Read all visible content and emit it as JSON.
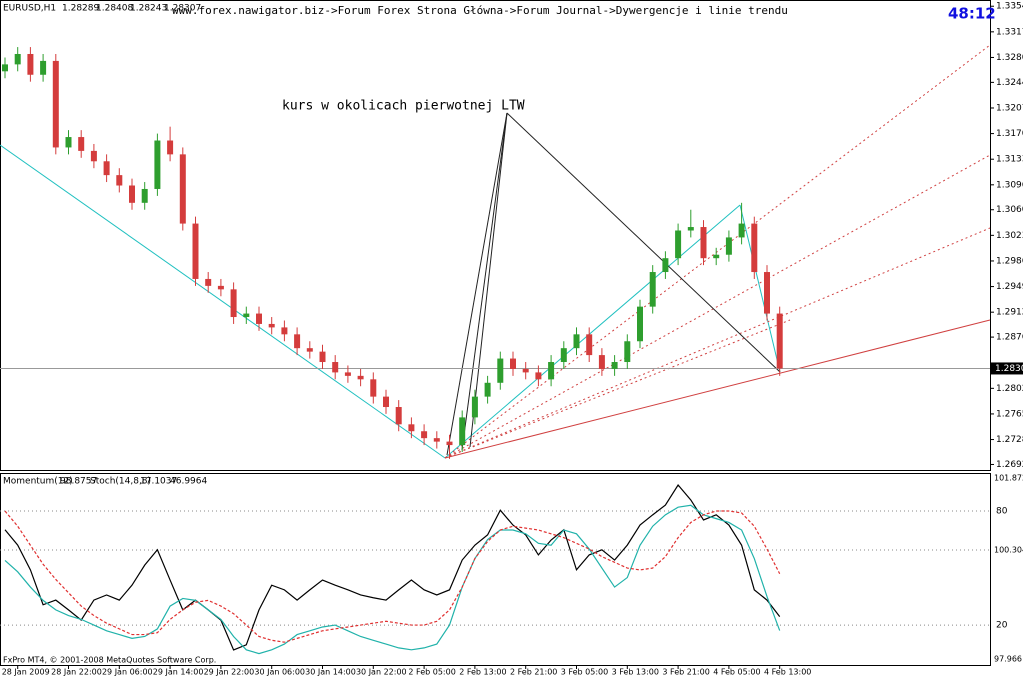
{
  "chart_data": [
    {
      "type": "candlestick",
      "symbol": "EURUSD,H1",
      "ohlc_header": [
        1.28289,
        1.28408,
        1.28243,
        1.28307
      ],
      "breadcrumb": "www.forex.nawigator.biz->Forum Forex Strona Główna->Forum Journal->Dywergencje i linie trendu",
      "timer": "48:12",
      "annotation": "kurs w okolicach pierwotnej LTW",
      "current_price": 1.28307,
      "up_color": "#2e9e2e",
      "down_color": "#d43c3c",
      "categories": [
        null,
        "28 Jan 2009",
        null,
        null,
        null,
        "28 Jan 22:00",
        null,
        null,
        null,
        "29 Jan 06:00",
        null,
        null,
        null,
        "29 Jan 14:00",
        null,
        null,
        null,
        "29 Jan 22:00",
        null,
        null,
        null,
        "30 Jan 06:00",
        null,
        null,
        null,
        "30 Jan 14:00",
        null,
        null,
        null,
        "30 Jan 22:00",
        null,
        null,
        null,
        "2 Feb 05:00",
        null,
        null,
        null,
        "2 Feb 13:00",
        null,
        null,
        null,
        "2 Feb 21:00",
        null,
        null,
        null,
        "3 Feb 05:00",
        null,
        null,
        null,
        "3 Feb 13:00",
        null,
        null,
        null,
        "3 Feb 21:00",
        null,
        null,
        null,
        "4 Feb 05:00",
        null,
        null,
        null,
        "4 Feb 13:00"
      ],
      "open": [
        1.326,
        1.327,
        1.3285,
        1.3255,
        1.3275,
        1.315,
        1.3165,
        1.3145,
        1.313,
        1.311,
        1.3095,
        1.307,
        1.309,
        1.316,
        1.314,
        1.304,
        1.296,
        1.295,
        1.2945,
        1.2905,
        1.291,
        1.2895,
        1.289,
        1.288,
        1.286,
        1.2855,
        1.284,
        1.2825,
        1.282,
        1.2815,
        1.279,
        1.2775,
        1.275,
        1.274,
        1.273,
        1.2725,
        1.272,
        1.276,
        1.279,
        1.281,
        1.2845,
        1.283,
        1.2825,
        1.2815,
        1.284,
        1.286,
        1.288,
        1.285,
        1.283,
        1.284,
        1.287,
        1.292,
        1.297,
        1.299,
        1.303,
        1.3035,
        1.299,
        1.2995,
        1.302,
        1.304,
        1.297,
        1.291
      ],
      "high": [
        1.328,
        1.3295,
        1.3295,
        1.3285,
        1.3285,
        1.3175,
        1.3175,
        1.3155,
        1.314,
        1.312,
        1.3105,
        1.31,
        1.317,
        1.318,
        1.315,
        1.305,
        1.297,
        1.296,
        1.2955,
        1.292,
        1.292,
        1.2905,
        1.29,
        1.289,
        1.287,
        1.2865,
        1.285,
        1.2835,
        1.283,
        1.2825,
        1.28,
        1.2785,
        1.276,
        1.275,
        1.274,
        1.2735,
        1.277,
        1.28,
        1.282,
        1.2855,
        1.2855,
        1.284,
        1.2835,
        1.285,
        1.287,
        1.289,
        1.289,
        1.286,
        1.285,
        1.288,
        1.293,
        1.298,
        1.3,
        1.304,
        1.306,
        1.3045,
        1.3005,
        1.303,
        1.307,
        1.305,
        1.298,
        1.292
      ],
      "low": [
        1.325,
        1.326,
        1.3245,
        1.3245,
        1.314,
        1.314,
        1.3135,
        1.312,
        1.31,
        1.3085,
        1.306,
        1.306,
        1.308,
        1.313,
        1.303,
        1.295,
        1.294,
        1.2935,
        1.2895,
        1.2895,
        1.2885,
        1.288,
        1.287,
        1.285,
        1.2845,
        1.283,
        1.2815,
        1.281,
        1.2805,
        1.278,
        1.2765,
        1.274,
        1.273,
        1.272,
        1.2715,
        1.27,
        1.271,
        1.275,
        1.278,
        1.28,
        1.282,
        1.2815,
        1.2805,
        1.2805,
        1.283,
        1.285,
        1.284,
        1.282,
        1.282,
        1.283,
        1.286,
        1.291,
        1.296,
        1.298,
        1.302,
        1.298,
        1.298,
        1.2985,
        1.301,
        1.296,
        1.29,
        1.282
      ],
      "close": [
        1.327,
        1.3285,
        1.3255,
        1.3275,
        1.315,
        1.3165,
        1.3145,
        1.313,
        1.311,
        1.3095,
        1.307,
        1.309,
        1.316,
        1.314,
        1.304,
        1.296,
        1.295,
        1.2945,
        1.2905,
        1.291,
        1.2895,
        1.289,
        1.288,
        1.286,
        1.2855,
        1.284,
        1.2825,
        1.282,
        1.2815,
        1.279,
        1.2775,
        1.275,
        1.274,
        1.273,
        1.2725,
        1.272,
        1.276,
        1.279,
        1.281,
        1.2845,
        1.283,
        1.2825,
        1.2815,
        1.284,
        1.286,
        1.288,
        1.285,
        1.283,
        1.284,
        1.287,
        1.292,
        1.297,
        1.299,
        1.303,
        1.3035,
        1.299,
        1.2995,
        1.302,
        1.304,
        1.297,
        1.291,
        1.28307
      ],
      "ylim": [
        1.2684,
        1.3363
      ],
      "yticks": [
        {
          "value": 1.3354,
          "label": "1.33540"
        },
        {
          "value": 1.3317,
          "label": "1.33170"
        },
        {
          "value": 1.328,
          "label": "1.32800"
        },
        {
          "value": 1.3244,
          "label": "1.32440"
        },
        {
          "value": 1.3207,
          "label": "1.32070"
        },
        {
          "value": 1.317,
          "label": "1.31700"
        },
        {
          "value": 1.3133,
          "label": "1.31330"
        },
        {
          "value": 1.3096,
          "label": "1.30960"
        },
        {
          "value": 1.306,
          "label": "1.30600"
        },
        {
          "value": 1.3023,
          "label": "1.30230"
        },
        {
          "value": 1.2986,
          "label": "1.29860"
        },
        {
          "value": 1.2949,
          "label": "1.29490"
        },
        {
          "value": 1.2912,
          "label": "1.29120"
        },
        {
          "value": 1.2876,
          "label": "1.28760"
        },
        {
          "value": 1.2802,
          "label": "1.28020"
        },
        {
          "value": 1.2765,
          "label": "1.27650"
        },
        {
          "value": 1.2728,
          "label": "1.27280"
        },
        {
          "value": 1.2692,
          "label": "1.26920"
        }
      ]
    },
    {
      "type": "line",
      "footer": "FxPro MT4, © 2001-2008 MetaQuotes Software Corp.",
      "ylim": [
        -1,
        100
      ],
      "yticks": [
        80,
        20
      ],
      "y2lim": [
        97.837,
        101.958
      ],
      "y2ticks": [
        101.8722,
        100.3048,
        97.966
      ],
      "grid": true,
      "series": [
        {
          "name": "Momentum(12)",
          "color": "#000000",
          "axis": "y2",
          "values": [
            100.74,
            100.41,
            99.88,
            99.13,
            99.23,
            99.02,
            98.8,
            99.23,
            99.34,
            99.23,
            99.55,
            99.98,
            100.31,
            99.66,
            99.02,
            99.23,
            99.02,
            98.8,
            98.16,
            98.27,
            99.02,
            99.55,
            99.45,
            99.23,
            99.45,
            99.66,
            99.55,
            99.45,
            99.34,
            99.28,
            99.23,
            99.45,
            99.66,
            99.45,
            99.34,
            99.45,
            100.09,
            100.41,
            100.63,
            101.16,
            100.84,
            100.63,
            100.2,
            100.52,
            100.74,
            99.88,
            100.2,
            100.31,
            100.09,
            100.41,
            100.84,
            101.06,
            101.27,
            101.7,
            101.38,
            100.95,
            101.06,
            100.84,
            100.41,
            99.45,
            99.23,
            98.8757
          ]
        },
        {
          "name": "Stoch(14,8,8)",
          "color": "#20b2aa",
          "values": [
            54,
            48,
            40,
            33,
            28,
            25,
            23,
            20,
            17,
            15,
            13,
            14,
            18,
            30,
            34,
            33,
            28,
            23,
            14,
            7,
            5,
            7,
            10,
            15,
            17,
            19,
            20,
            17,
            14,
            12,
            10,
            8,
            7,
            8,
            10,
            20,
            40,
            55,
            65,
            70,
            70,
            68,
            63,
            62,
            70,
            68,
            60,
            50,
            40,
            45,
            62,
            72,
            78,
            82,
            83,
            78,
            76,
            74,
            70,
            55,
            35,
            17.1037
          ]
        },
        {
          "color": "#e03030",
          "dash": true,
          "values": [
            80,
            72,
            62,
            52,
            44,
            37,
            30,
            25,
            21,
            18,
            15,
            15,
            16,
            23,
            28,
            32,
            33,
            30,
            26,
            20,
            14,
            12,
            11,
            13,
            15,
            17,
            18,
            19,
            20,
            21,
            22,
            21,
            20,
            20,
            22,
            28,
            40,
            55,
            64,
            70,
            72,
            71,
            70,
            68,
            66,
            63,
            60,
            56,
            53,
            50,
            49,
            50,
            56,
            66,
            74,
            78,
            80,
            80,
            79,
            72,
            60,
            46.9964
          ]
        }
      ]
    }
  ]
}
